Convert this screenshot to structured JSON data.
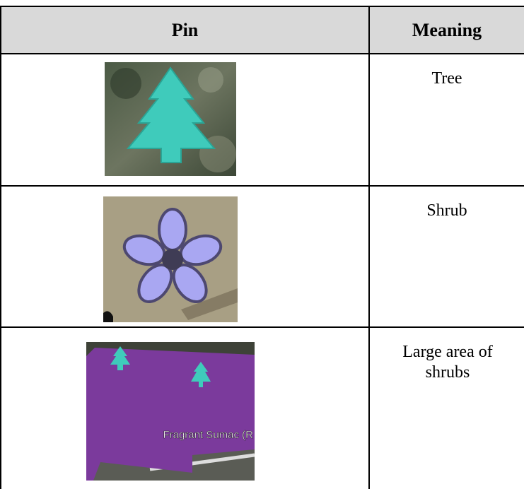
{
  "table": {
    "header": [
      "Pin",
      "Meaning"
    ],
    "rows": [
      {
        "meaning": "Tree"
      },
      {
        "meaning": "Shrub"
      },
      {
        "meaning": "Large area of shrubs",
        "pin_label": "Fragrant Sumac (R"
      }
    ]
  }
}
